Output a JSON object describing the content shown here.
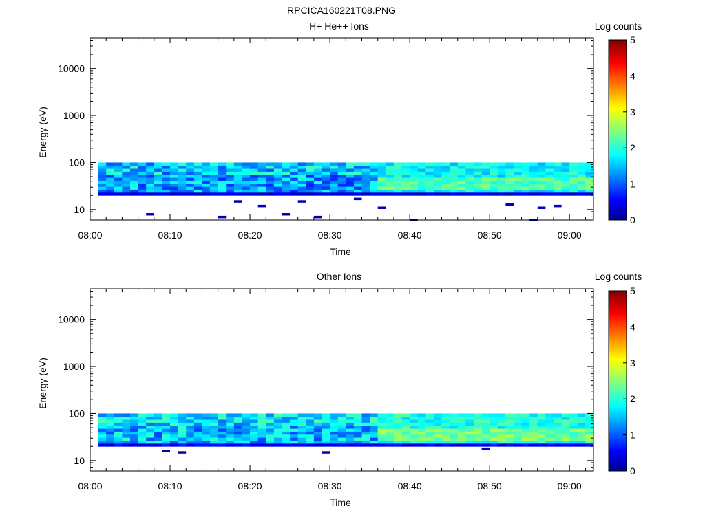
{
  "figure_title": "RPCICA160221T08.PNG",
  "chart_data": [
    {
      "type": "heatmap",
      "title": "H+ He++ Ions",
      "xlabel": "Time",
      "ylabel": "Energy (eV)",
      "y_scale": "log",
      "ylim": [
        6,
        45000
      ],
      "xlim": [
        "08:00",
        "09:03"
      ],
      "x_ticks": [
        "08:00",
        "08:10",
        "08:20",
        "08:30",
        "08:40",
        "08:50",
        "09:00"
      ],
      "y_ticks": [
        "10",
        "100",
        "1000",
        "10000"
      ],
      "colorbar": {
        "label": "Log counts",
        "ticks": [
          "0",
          "1",
          "2",
          "3",
          "4",
          "5"
        ],
        "range": [
          0,
          5
        ]
      },
      "data_extent": {
        "time_start": "08:01",
        "time_end": "09:03",
        "energy_min_eV": 20,
        "energy_max_eV": 100
      },
      "regime_change_time": "08:36",
      "sparse_low_energy_hits": [
        {
          "time": "08:07",
          "energy_eV": 8,
          "log_counts": 0.3
        },
        {
          "time": "08:16",
          "energy_eV": 7,
          "log_counts": 0.3
        },
        {
          "time": "08:18",
          "energy_eV": 15,
          "log_counts": 0.2
        },
        {
          "time": "08:21",
          "energy_eV": 12,
          "log_counts": 0.3
        },
        {
          "time": "08:24",
          "energy_eV": 8,
          "log_counts": 0.2
        },
        {
          "time": "08:26",
          "energy_eV": 15,
          "log_counts": 0.3
        },
        {
          "time": "08:28",
          "energy_eV": 7,
          "log_counts": 0.2
        },
        {
          "time": "08:33",
          "energy_eV": 17,
          "log_counts": 0.3
        },
        {
          "time": "08:36",
          "energy_eV": 11,
          "log_counts": 0.3
        },
        {
          "time": "08:40",
          "energy_eV": 6,
          "log_counts": 0.2
        },
        {
          "time": "08:52",
          "energy_eV": 13,
          "log_counts": 0.3
        },
        {
          "time": "08:55",
          "energy_eV": 6,
          "log_counts": 0.2
        },
        {
          "time": "08:56",
          "energy_eV": 11,
          "log_counts": 0.3
        },
        {
          "time": "08:58",
          "energy_eV": 12,
          "log_counts": 0.3
        }
      ]
    },
    {
      "type": "heatmap",
      "title": "Other Ions",
      "xlabel": "Time",
      "ylabel": "Energy (eV)",
      "y_scale": "log",
      "ylim": [
        6,
        45000
      ],
      "xlim": [
        "08:00",
        "09:03"
      ],
      "x_ticks": [
        "08:00",
        "08:10",
        "08:20",
        "08:30",
        "08:40",
        "08:50",
        "09:00"
      ],
      "y_ticks": [
        "10",
        "100",
        "1000",
        "10000"
      ],
      "colorbar": {
        "label": "Log counts",
        "ticks": [
          "0",
          "1",
          "2",
          "3",
          "4",
          "5"
        ],
        "range": [
          0,
          5
        ]
      },
      "data_extent": {
        "time_start": "08:01",
        "time_end": "09:03",
        "energy_min_eV": 20,
        "energy_max_eV": 100
      },
      "regime_change_time": "08:36",
      "sparse_low_energy_hits": [
        {
          "time": "08:09",
          "energy_eV": 16,
          "log_counts": 0.3
        },
        {
          "time": "08:11",
          "energy_eV": 15,
          "log_counts": 0.2
        },
        {
          "time": "08:29",
          "energy_eV": 15,
          "log_counts": 0.3
        },
        {
          "time": "08:49",
          "energy_eV": 18,
          "log_counts": 0.3
        }
      ]
    }
  ]
}
